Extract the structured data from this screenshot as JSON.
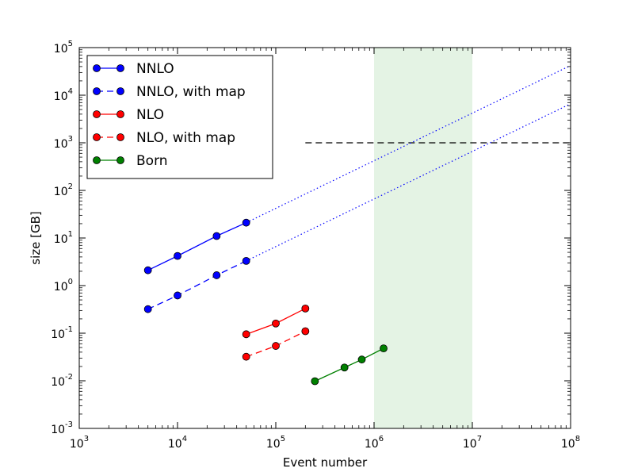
{
  "chart_data": {
    "type": "line",
    "xscale": "log",
    "yscale": "log",
    "xlabel": "Event number",
    "ylabel": "size [GB]",
    "xlim": [
      1000,
      100000000
    ],
    "ylim": [
      0.001,
      100000
    ],
    "x_ticks": [
      {
        "base": "10",
        "exp": "3"
      },
      {
        "base": "10",
        "exp": "4"
      },
      {
        "base": "10",
        "exp": "5"
      },
      {
        "base": "10",
        "exp": "6"
      },
      {
        "base": "10",
        "exp": "7"
      },
      {
        "base": "10",
        "exp": "8"
      }
    ],
    "y_ticks": [
      {
        "base": "10",
        "exp": "-3"
      },
      {
        "base": "10",
        "exp": "-2"
      },
      {
        "base": "10",
        "exp": "-1"
      },
      {
        "base": "10",
        "exp": "0"
      },
      {
        "base": "10",
        "exp": "1"
      },
      {
        "base": "10",
        "exp": "2"
      },
      {
        "base": "10",
        "exp": "3"
      },
      {
        "base": "10",
        "exp": "4"
      },
      {
        "base": "10",
        "exp": "5"
      }
    ],
    "shaded_region": {
      "x_from": 1000000,
      "x_to": 10000000,
      "color": "#2ca02c"
    },
    "reference_line": {
      "y": 1000,
      "x_from": 200000,
      "x_to": 100000000,
      "style": "dashed",
      "color": "#000000"
    },
    "extrapolations": [
      {
        "series": "NNLO",
        "points": [
          [
            50000,
            21
          ],
          [
            100000000,
            42000
          ]
        ],
        "style": "dotted",
        "color": "#0000ff"
      },
      {
        "series": "NNLO, with map",
        "points": [
          [
            50000,
            3.3
          ],
          [
            100000000,
            6600
          ]
        ],
        "style": "dotted",
        "color": "#0000ff"
      }
    ],
    "series": [
      {
        "name": "NNLO",
        "color": "#0000ff",
        "style": "solid",
        "x": [
          5000,
          10000,
          25000,
          50000
        ],
        "y": [
          2.1,
          4.2,
          11,
          21
        ]
      },
      {
        "name": "NNLO, with map",
        "color": "#0000ff",
        "style": "dashed",
        "x": [
          5000,
          10000,
          25000,
          50000
        ],
        "y": [
          0.32,
          0.62,
          1.65,
          3.3
        ]
      },
      {
        "name": "NLO",
        "color": "#ff0000",
        "style": "solid",
        "x": [
          50000,
          100000,
          200000
        ],
        "y": [
          0.095,
          0.16,
          0.33
        ]
      },
      {
        "name": "NLO, with map",
        "color": "#ff0000",
        "style": "dashed",
        "x": [
          50000,
          100000,
          200000
        ],
        "y": [
          0.032,
          0.054,
          0.11
        ]
      },
      {
        "name": "Born",
        "color": "#008000",
        "style": "solid",
        "x": [
          250000,
          500000,
          750000,
          1250000
        ],
        "y": [
          0.0098,
          0.019,
          0.028,
          0.048
        ]
      }
    ],
    "legend": {
      "position": "top-left",
      "entries": [
        "NNLO",
        "NNLO, with map",
        "NLO",
        "NLO, with map",
        "Born"
      ]
    }
  }
}
